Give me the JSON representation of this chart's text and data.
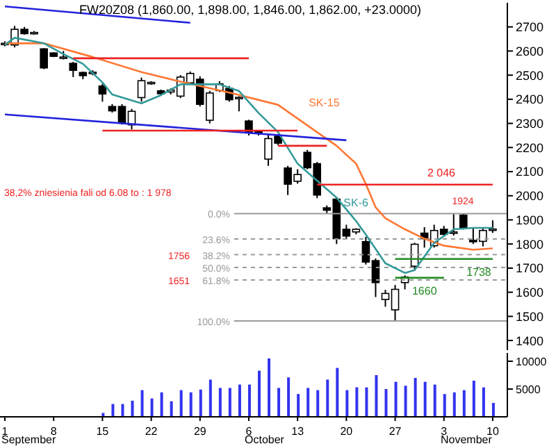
{
  "chart_data": [
    {
      "type": "candlestick",
      "title": "FW20Z08 (1,860.00, 1,898.00, 1,846.00, 1,862.00, +23.0000)",
      "categories": [
        "1",
        null,
        null,
        null,
        null,
        "8",
        null,
        null,
        null,
        null,
        "15",
        null,
        null,
        null,
        null,
        "22",
        null,
        null,
        null,
        null,
        "29",
        null,
        null,
        null,
        null,
        "6",
        null,
        null,
        null,
        null,
        "13",
        null,
        null,
        null,
        null,
        "20",
        null,
        null,
        null,
        null,
        "27",
        null,
        null,
        null,
        null,
        "3",
        null,
        null,
        null,
        null,
        "10"
      ],
      "ohlc": [
        [
          2630,
          2640,
          2620,
          2632
        ],
        [
          2625,
          2704,
          2615,
          2690
        ],
        [
          2690,
          2700,
          2668,
          2672
        ],
        [
          2675,
          2683,
          2668,
          2677
        ],
        [
          2609,
          2612,
          2525,
          2530
        ],
        [
          2592,
          2595,
          2575,
          2578
        ],
        [
          2570,
          2600,
          2565,
          2575
        ],
        [
          2549,
          2555,
          2492,
          2520
        ],
        [
          2511,
          2515,
          2483,
          2498
        ],
        [
          2508,
          2520,
          2500,
          2512
        ],
        [
          2455,
          2465,
          2390,
          2422
        ],
        [
          2370,
          2380,
          2345,
          2352
        ],
        [
          2370,
          2380,
          2295,
          2303
        ],
        [
          2294,
          2360,
          2275,
          2350
        ],
        [
          2407,
          2490,
          2390,
          2477
        ],
        [
          2465,
          2475,
          2460,
          2470
        ],
        [
          2435,
          2440,
          2418,
          2423
        ],
        [
          2430,
          2445,
          2420,
          2438
        ],
        [
          2413,
          2500,
          2405,
          2492
        ],
        [
          2468,
          2515,
          2460,
          2507
        ],
        [
          2483,
          2495,
          2370,
          2379
        ],
        [
          2313,
          2435,
          2300,
          2426
        ],
        [
          2436,
          2475,
          2430,
          2464
        ],
        [
          2445,
          2455,
          2390,
          2398
        ],
        [
          2405,
          2412,
          2350,
          2408
        ],
        [
          2310,
          2315,
          2250,
          2262
        ],
        [
          2265,
          2270,
          2250,
          2258
        ],
        [
          2152,
          2255,
          2124,
          2237
        ],
        [
          2247,
          2255,
          2210,
          2218
        ],
        [
          2115,
          2124,
          2003,
          2048
        ],
        [
          2060,
          2110,
          2050,
          2088
        ],
        [
          2180,
          2190,
          2110,
          2116
        ],
        [
          2133,
          2140,
          1990,
          2003
        ],
        [
          1950,
          1960,
          1925,
          1940
        ],
        [
          1986,
          1995,
          1800,
          1822
        ],
        [
          1861,
          1880,
          1820,
          1833
        ],
        [
          1850,
          1865,
          1840,
          1861
        ],
        [
          1810,
          1830,
          1715,
          1725
        ],
        [
          1731,
          1740,
          1580,
          1640
        ],
        [
          1570,
          1610,
          1540,
          1595
        ],
        [
          1527,
          1630,
          1480,
          1612
        ],
        [
          1640,
          1670,
          1612,
          1663
        ],
        [
          1708,
          1805,
          1690,
          1799
        ],
        [
          1845,
          1870,
          1785,
          1822
        ],
        [
          1793,
          1880,
          1785,
          1856
        ],
        [
          1861,
          1875,
          1835,
          1840
        ],
        [
          1845,
          1924,
          1835,
          1850
        ],
        [
          1920,
          1926,
          1860,
          1865
        ],
        [
          1815,
          1865,
          1800,
          1810
        ],
        [
          1811,
          1865,
          1790,
          1856
        ],
        [
          1860,
          1898,
          1846,
          1862
        ]
      ],
      "series": [
        {
          "type": "line",
          "name": "SK-15",
          "color": "#ff7733",
          "values": [
            2632,
            null,
            null,
            null,
            2632,
            null,
            null,
            null,
            null,
            2575,
            null,
            null,
            null,
            null,
            2513,
            null,
            null,
            null,
            2473,
            null,
            null,
            null,
            null,
            2428,
            null,
            null,
            null,
            null,
            2377,
            null,
            2320,
            null,
            null,
            null,
            2207,
            null,
            2133,
            2048,
            1952,
            1907,
            null,
            1861,
            null,
            1822,
            null,
            1793,
            null,
            null,
            1776,
            null,
            1782
          ]
        },
        {
          "type": "line",
          "name": "SK-6",
          "color": "#339999",
          "values": [
            2626,
            2655,
            null,
            null,
            2632,
            null,
            2587,
            null,
            2547,
            null,
            2470,
            2420,
            null,
            null,
            2383,
            null,
            2417,
            null,
            2462,
            null,
            null,
            null,
            2462,
            null,
            2434,
            null,
            2343,
            null,
            2264,
            null,
            2133,
            null,
            null,
            null,
            1992,
            null,
            1895,
            1839,
            null,
            1720,
            null,
            1680,
            1692,
            null,
            1805,
            null,
            1861,
            null,
            1867,
            null,
            1867
          ]
        },
        {
          "type": "line",
          "color": "#2222dd",
          "values": [
            2785,
            null,
            null,
            null,
            null,
            null,
            null,
            null,
            null,
            null,
            null,
            null,
            null,
            null,
            null,
            null,
            null,
            null,
            null,
            2717,
            null,
            null,
            null,
            null,
            null,
            null,
            null,
            null,
            null,
            null,
            null,
            null,
            null,
            null,
            null,
            null,
            null,
            null,
            null,
            null,
            null,
            null,
            null,
            null,
            null,
            null,
            null,
            null,
            null,
            null,
            null
          ]
        },
        {
          "type": "line",
          "color": "#2222dd",
          "values": [
            2337,
            null,
            null,
            null,
            null,
            null,
            null,
            null,
            null,
            null,
            null,
            null,
            null,
            null,
            null,
            null,
            null,
            null,
            null,
            null,
            null,
            null,
            null,
            null,
            null,
            null,
            null,
            null,
            null,
            null,
            null,
            null,
            null,
            null,
            null,
            2230,
            null,
            null,
            null,
            null,
            null,
            null,
            null,
            null,
            null,
            null,
            null,
            null,
            null,
            null,
            null
          ]
        },
        {
          "type": "line",
          "color": "#ee2222",
          "values": [
            null,
            null,
            null,
            null,
            null,
            null,
            null,
            2570,
            null,
            null,
            null,
            null,
            null,
            null,
            null,
            null,
            null,
            null,
            null,
            null,
            null,
            null,
            null,
            null,
            null,
            2570,
            null,
            null,
            null,
            null,
            null,
            null,
            null,
            null,
            null,
            null,
            null,
            null,
            null,
            null,
            null,
            null,
            null,
            null,
            null,
            null,
            null,
            null,
            null,
            null,
            null
          ]
        },
        {
          "type": "line",
          "color": "#ee2222",
          "values": [
            null,
            null,
            null,
            null,
            null,
            null,
            null,
            null,
            null,
            null,
            2270,
            null,
            null,
            null,
            null,
            null,
            null,
            null,
            null,
            null,
            null,
            null,
            null,
            null,
            null,
            null,
            null,
            null,
            null,
            null,
            2270,
            null,
            null,
            null,
            null,
            null,
            null,
            null,
            null,
            null,
            null,
            null,
            null,
            null,
            null,
            null,
            null,
            null,
            null,
            null,
            null
          ]
        },
        {
          "type": "line",
          "color": "#ee2222",
          "values": [
            null,
            null,
            null,
            null,
            null,
            null,
            null,
            null,
            null,
            null,
            null,
            null,
            null,
            null,
            null,
            null,
            null,
            null,
            null,
            null,
            null,
            null,
            null,
            null,
            null,
            null,
            null,
            null,
            2207,
            null,
            null,
            null,
            null,
            2207,
            null,
            null,
            null,
            null,
            null,
            null,
            null,
            null,
            null,
            null,
            null,
            null,
            null,
            null,
            null,
            null,
            null
          ]
        },
        {
          "type": "line",
          "name": "2 046",
          "color": "#ee2222",
          "values": [
            null,
            null,
            null,
            null,
            null,
            null,
            null,
            null,
            null,
            null,
            null,
            null,
            null,
            null,
            null,
            null,
            null,
            null,
            null,
            null,
            null,
            null,
            null,
            null,
            null,
            null,
            null,
            null,
            null,
            null,
            null,
            null,
            2046,
            null,
            null,
            null,
            null,
            null,
            null,
            null,
            null,
            null,
            null,
            null,
            null,
            null,
            null,
            null,
            null,
            null,
            2046
          ]
        },
        {
          "type": "line",
          "name": "1660",
          "color": "#228b22",
          "values": [
            null,
            null,
            null,
            null,
            null,
            null,
            null,
            null,
            null,
            null,
            null,
            null,
            null,
            null,
            null,
            null,
            null,
            null,
            null,
            null,
            null,
            null,
            null,
            null,
            null,
            null,
            null,
            null,
            null,
            null,
            null,
            null,
            null,
            null,
            null,
            null,
            null,
            null,
            null,
            null,
            1660,
            null,
            null,
            null,
            null,
            1660,
            null,
            null,
            null,
            null,
            null
          ]
        },
        {
          "type": "line",
          "name": "1738",
          "color": "#228b22",
          "values": [
            null,
            null,
            null,
            null,
            null,
            null,
            null,
            null,
            null,
            null,
            null,
            null,
            null,
            null,
            null,
            null,
            null,
            null,
            null,
            null,
            null,
            null,
            null,
            null,
            null,
            null,
            null,
            null,
            null,
            null,
            null,
            null,
            null,
            null,
            null,
            null,
            null,
            null,
            null,
            null,
            1738,
            null,
            null,
            null,
            null,
            null,
            null,
            null,
            null,
            null,
            1738
          ]
        }
      ],
      "ref_lines": [
        {
          "axis": "y",
          "value": 1926,
          "color": "#999999",
          "line_style": "solid"
        },
        {
          "axis": "y",
          "value": 1821,
          "color": "#999999",
          "line_style": "dashed"
        },
        {
          "axis": "y",
          "value": 1756,
          "color": "#999999",
          "line_style": "dashed"
        },
        {
          "axis": "y",
          "value": 1703,
          "color": "#999999",
          "line_style": "dashed"
        },
        {
          "axis": "y",
          "value": 1651,
          "color": "#999999",
          "line_style": "dashed"
        },
        {
          "axis": "y",
          "value": 1481,
          "color": "#999999",
          "line_style": "solid"
        }
      ],
      "annotations": [
        "38,2% zniesienia fali od 6.08 to : 1 978",
        {
          "text": "1924",
          "y": 1924
        },
        "0.0%",
        "23.6%",
        "38.2%",
        "50.0%",
        "61.8%",
        "100.0%",
        "1756",
        "1651"
      ],
      "ylim": [
        1360,
        2800
      ],
      "yticks": [
        1400,
        1500,
        1600,
        1700,
        1800,
        1900,
        2000,
        2100,
        2200,
        2300,
        2400,
        2500,
        2600,
        2700
      ],
      "tick_labels": "y"
    },
    {
      "type": "bar",
      "categories": [
        "1",
        null,
        null,
        null,
        null,
        "8",
        null,
        null,
        null,
        null,
        "15",
        null,
        null,
        null,
        null,
        "22",
        null,
        null,
        null,
        null,
        "29",
        null,
        null,
        null,
        null,
        "6",
        null,
        null,
        null,
        null,
        "13",
        null,
        null,
        null,
        null,
        "20",
        null,
        null,
        null,
        null,
        "27",
        null,
        null,
        null,
        null,
        "3",
        null,
        null,
        null,
        null,
        "10"
      ],
      "values": [
        null,
        null,
        null,
        null,
        null,
        null,
        null,
        null,
        null,
        null,
        700,
        2300,
        2300,
        2900,
        4800,
        3300,
        4400,
        2800,
        4800,
        4400,
        4900,
        6700,
        5200,
        5200,
        5800,
        5800,
        8300,
        10500,
        5200,
        7100,
        4100,
        5200,
        4800,
        6700,
        8800,
        4800,
        5300,
        5300,
        7500,
        5000,
        6300,
        5600,
        7000,
        6300,
        5800,
        4100,
        4400,
        4800,
        6500,
        5300,
        2500
      ],
      "color": "#3333ee",
      "ylim": [
        0,
        11500
      ],
      "yticks": [
        5000,
        10000
      ],
      "annotations": [
        "September",
        "October",
        "November"
      ]
    }
  ]
}
